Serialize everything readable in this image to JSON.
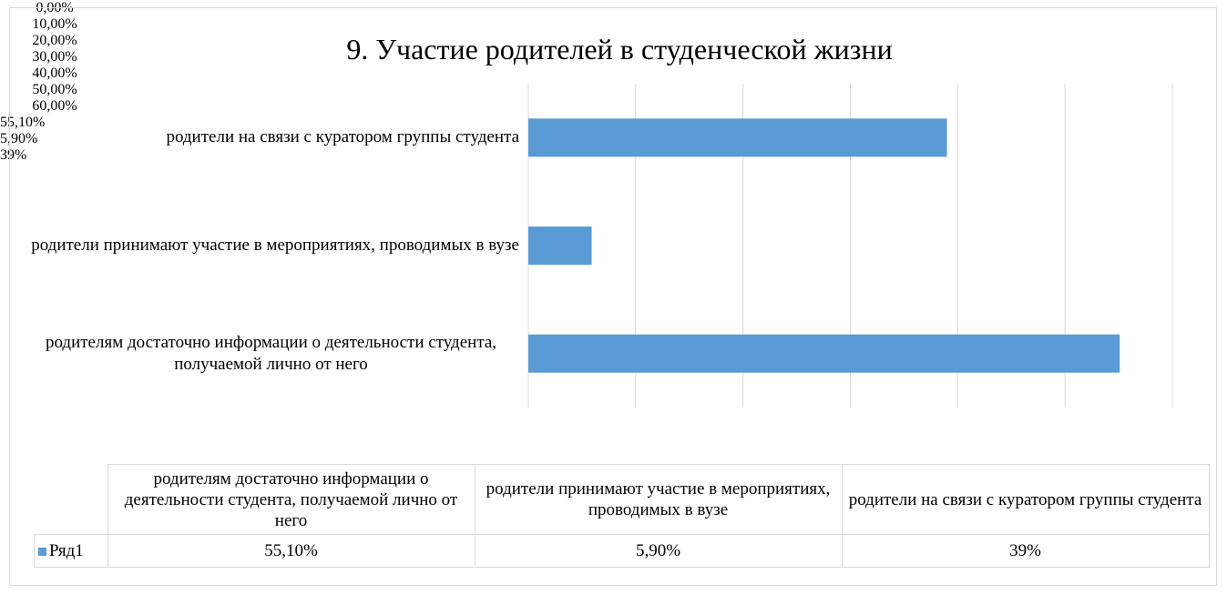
{
  "chart_data": {
    "type": "bar",
    "orientation": "horizontal",
    "title": "9. Участие родителей в студенческой жизни",
    "categories": [
      "родителям достаточно информации о деятельности студента, получаемой лично от него",
      "родители принимают участие в мероприятиях, проводимых в вузе",
      "родители на связи с куратором группы студента"
    ],
    "series": [
      {
        "name": "Ряд1",
        "color": "#5b9bd5",
        "values": [
          55.1,
          5.9,
          39
        ],
        "value_labels": [
          "55,10%",
          "5,90%",
          "39%"
        ]
      }
    ],
    "xlim": [
      0,
      60
    ],
    "xticks": [
      {
        "value": 0,
        "label": "0,00%"
      },
      {
        "value": 10,
        "label": "10,00%"
      },
      {
        "value": 20,
        "label": "20,00%"
      },
      {
        "value": 30,
        "label": "30,00%"
      },
      {
        "value": 40,
        "label": "40,00%"
      },
      {
        "value": 50,
        "label": "50,00%"
      },
      {
        "value": 60,
        "label": "60,00%"
      }
    ],
    "grid": true,
    "data_table": true
  }
}
